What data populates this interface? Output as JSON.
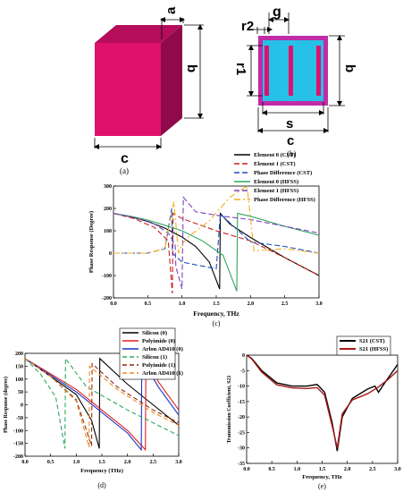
{
  "figure_a": {
    "dim_a": "a",
    "dim_b": "b",
    "dim_c": "c",
    "caption": "(a)",
    "colors": {
      "front": "#e0106e",
      "side": "#8e0a4a",
      "top": "#b50d5b"
    }
  },
  "figure_b": {
    "dim_r2": "r2",
    "dim_g": "g",
    "dim_r1": "r1",
    "dim_b": "b",
    "dim_s": "s",
    "dim_c": "c",
    "caption": "(b)",
    "colors": {
      "frame": "#c02ca8",
      "fill": "#27c0e6",
      "strip": "#e0106e"
    }
  },
  "chart_data": [
    {
      "id": "c",
      "type": "line",
      "caption": "(c)",
      "xlabel": "Frequency, THz",
      "ylabel": "Phase Response (Degree)",
      "xlim": [
        0,
        3
      ],
      "ylim": [
        -200,
        300
      ],
      "xticks": [
        "0.0",
        "0.5",
        "1.0",
        "1.5",
        "2.0",
        "2.5",
        "3.0"
      ],
      "yticks": [
        "300",
        "200",
        "100",
        "0",
        "-100",
        "-200"
      ],
      "legend_position": "top-right",
      "series": [
        {
          "name": "Element 0 (CST)",
          "color": "#000000",
          "dash": "",
          "x": [
            0,
            0.25,
            0.5,
            0.75,
            1.0,
            1.2,
            1.4,
            1.55,
            1.56,
            1.7,
            2.0,
            2.5,
            3.0
          ],
          "y": [
            178,
            163,
            142,
            112,
            72,
            30,
            -40,
            -160,
            178,
            130,
            70,
            -20,
            -100
          ]
        },
        {
          "name": "Element 1 (CST)",
          "color": "#c81e1e",
          "dash": "6,3",
          "x": [
            0,
            0.3,
            0.6,
            0.8,
            0.86,
            0.87,
            1.0,
            1.5,
            2.0,
            2.5,
            3.0
          ],
          "y": [
            178,
            155,
            115,
            55,
            -180,
            178,
            155,
            100,
            55,
            -20,
            -100
          ]
        },
        {
          "name": "Phase Difference (CST)",
          "color": "#1a4fc0",
          "dash": "6,3",
          "x": [
            0,
            0.5,
            0.75,
            0.85,
            0.86,
            1.0,
            1.5,
            1.56,
            2.0,
            2.5,
            3.0
          ],
          "y": [
            0,
            0,
            20,
            200,
            0,
            -40,
            -70,
            175,
            50,
            30,
            0
          ]
        },
        {
          "name": "Element 0 (HFSS)",
          "color": "#2ea85c",
          "dash": "",
          "x": [
            0,
            0.25,
            0.5,
            0.75,
            1.0,
            1.3,
            1.6,
            1.8,
            1.81,
            2.0,
            2.5,
            3.0
          ],
          "y": [
            178,
            165,
            148,
            125,
            100,
            55,
            -10,
            -170,
            178,
            165,
            120,
            80
          ]
        },
        {
          "name": "Element 1 (HFSS)",
          "color": "#7b3fc4",
          "dash": "6,3",
          "x": [
            0,
            0.3,
            0.6,
            0.8,
            0.9,
            0.91,
            1.0,
            1.02,
            1.2,
            1.6,
            2.0,
            2.5,
            3.0
          ],
          "y": [
            178,
            160,
            130,
            90,
            40,
            -60,
            -160,
            250,
            185,
            165,
            150,
            120,
            90
          ]
        },
        {
          "name": "Phase Difference (HFSS)",
          "color": "#f0b020",
          "dash": "7,3,2,3",
          "x": [
            0,
            0.5,
            0.75,
            0.88,
            0.95,
            1.0,
            1.1,
            1.4,
            1.7,
            1.95,
            2.05,
            2.5,
            3.0
          ],
          "y": [
            0,
            0,
            20,
            230,
            0,
            40,
            75,
            145,
            250,
            300,
            10,
            20,
            0
          ]
        }
      ]
    },
    {
      "id": "d",
      "type": "line",
      "caption": "(d)",
      "xlabel": "Frequency (THz)",
      "ylabel": "Phase Response (degree)",
      "xlim": [
        0,
        3
      ],
      "ylim": [
        -200,
        200
      ],
      "xticks": [
        "0.0",
        "0.5",
        "1.0",
        "1.5",
        "2.0",
        "2.5",
        "3.0"
      ],
      "yticks": [
        "200",
        "150",
        "100",
        "50",
        "0",
        "-50",
        "-100",
        "-150",
        "-200"
      ],
      "legend_position": "top-right",
      "series": [
        {
          "name": "Silicon (0)",
          "color": "#000000",
          "dash": "",
          "x": [
            0,
            0.5,
            1.0,
            1.3,
            1.45,
            1.46,
            2.0,
            2.5,
            3.0
          ],
          "y": [
            180,
            110,
            40,
            -60,
            -170,
            180,
            80,
            0,
            -80
          ]
        },
        {
          "name": "Polyimide (0)",
          "color": "#e02020",
          "dash": "",
          "x": [
            0,
            0.5,
            1.0,
            1.5,
            2.0,
            2.35,
            2.36,
            2.6,
            3.0
          ],
          "y": [
            180,
            120,
            60,
            -20,
            -100,
            -175,
            180,
            90,
            -20
          ]
        },
        {
          "name": "Arlon AD410 (0)",
          "color": "#1a35c8",
          "dash": "",
          "x": [
            0,
            0.5,
            1.0,
            1.5,
            2.0,
            2.27,
            2.28,
            2.6,
            3.0
          ],
          "y": [
            180,
            115,
            50,
            -30,
            -110,
            -175,
            180,
            70,
            -40
          ]
        },
        {
          "name": "Silicon (1)",
          "color": "#2ea85c",
          "dash": "5,3",
          "x": [
            0,
            0.3,
            0.6,
            0.78,
            0.79,
            1.2,
            2.0,
            3.0
          ],
          "y": [
            180,
            120,
            30,
            -170,
            180,
            70,
            -20,
            -120
          ]
        },
        {
          "name": "Polyimide (1)",
          "color": "#8b2a12",
          "dash": "5,3",
          "x": [
            0,
            0.5,
            1.0,
            1.3,
            1.31,
            1.8,
            2.5,
            3.0
          ],
          "y": [
            180,
            110,
            20,
            -160,
            160,
            70,
            -20,
            -70
          ]
        },
        {
          "name": "Arlon AD410 (1)",
          "color": "#f08a20",
          "dash": "5,3",
          "x": [
            0,
            0.5,
            1.0,
            1.25,
            1.26,
            1.8,
            2.5,
            3.0
          ],
          "y": [
            180,
            110,
            15,
            -165,
            150,
            60,
            -30,
            -80
          ]
        }
      ]
    },
    {
      "id": "e",
      "type": "line",
      "caption": "(e)",
      "xlabel": "Frequency, THz",
      "ylabel": "Transmission Coefficient, S21",
      "xlim": [
        0,
        3
      ],
      "ylim": [
        -35,
        0
      ],
      "xticks": [
        "0.0",
        "0.5",
        "1.0",
        "1.5",
        "2.0",
        "2.5",
        "3.0"
      ],
      "yticks": [
        "0",
        "-5",
        "-10",
        "-15",
        "-20",
        "-25",
        "-30",
        "-35"
      ],
      "legend_position": "top-right",
      "series": [
        {
          "name": "S21 (CST)",
          "color": "#000000",
          "dash": "",
          "x": [
            0,
            0.1,
            0.3,
            0.6,
            0.9,
            1.2,
            1.4,
            1.55,
            1.7,
            1.8,
            1.9,
            2.1,
            2.4,
            2.55,
            2.62,
            2.7,
            3.0
          ],
          "y": [
            0,
            -1,
            -5,
            -9,
            -10,
            -10,
            -9.5,
            -12,
            -22,
            -31,
            -20,
            -14,
            -11,
            -10,
            -12,
            -10,
            -3
          ]
        },
        {
          "name": "S21 (HFSS)",
          "color": "#a81818",
          "dash": "",
          "x": [
            0,
            0.1,
            0.3,
            0.6,
            0.9,
            1.2,
            1.4,
            1.55,
            1.7,
            1.8,
            1.9,
            2.1,
            2.4,
            2.6,
            2.8,
            3.0
          ],
          "y": [
            0,
            -1.2,
            -5.5,
            -9.6,
            -10.6,
            -10.8,
            -10.5,
            -13,
            -23,
            -30,
            -19,
            -14.5,
            -12.5,
            -10.5,
            -8,
            -5
          ]
        }
      ]
    }
  ]
}
